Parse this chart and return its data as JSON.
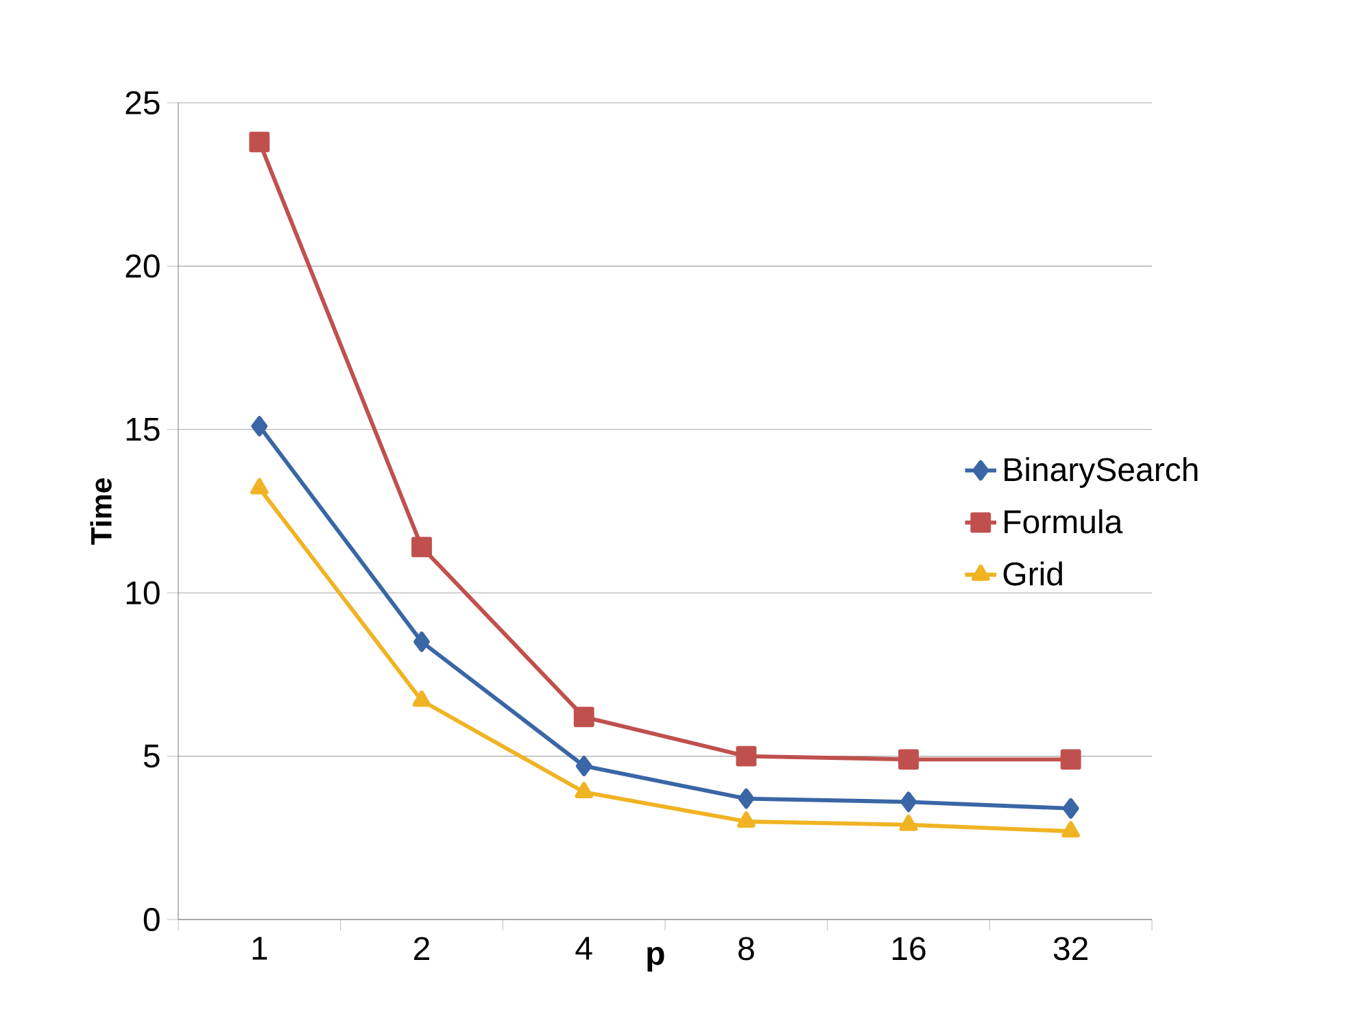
{
  "chart_data": {
    "type": "line",
    "xlabel": "p",
    "ylabel": "Time",
    "categories": [
      "1",
      "2",
      "4",
      "8",
      "16",
      "32"
    ],
    "series": [
      {
        "name": "BinarySearch",
        "color": "#3a66a6",
        "values": [
          15.1,
          8.5,
          4.7,
          3.7,
          3.6,
          3.4
        ]
      },
      {
        "name": "Formula",
        "color": "#c0504d",
        "values": [
          23.8,
          11.4,
          6.2,
          5.0,
          4.9,
          4.9
        ]
      },
      {
        "name": "Grid",
        "color": "#f0b323",
        "values": [
          13.2,
          6.7,
          3.9,
          3.0,
          2.9,
          2.7
        ]
      }
    ],
    "marker": [
      "diamond",
      "square",
      "triangle"
    ],
    "ylim": [
      0,
      25
    ],
    "yticks": [
      0,
      5,
      10,
      15,
      20,
      25
    ],
    "grid": "y",
    "legend": "right"
  }
}
